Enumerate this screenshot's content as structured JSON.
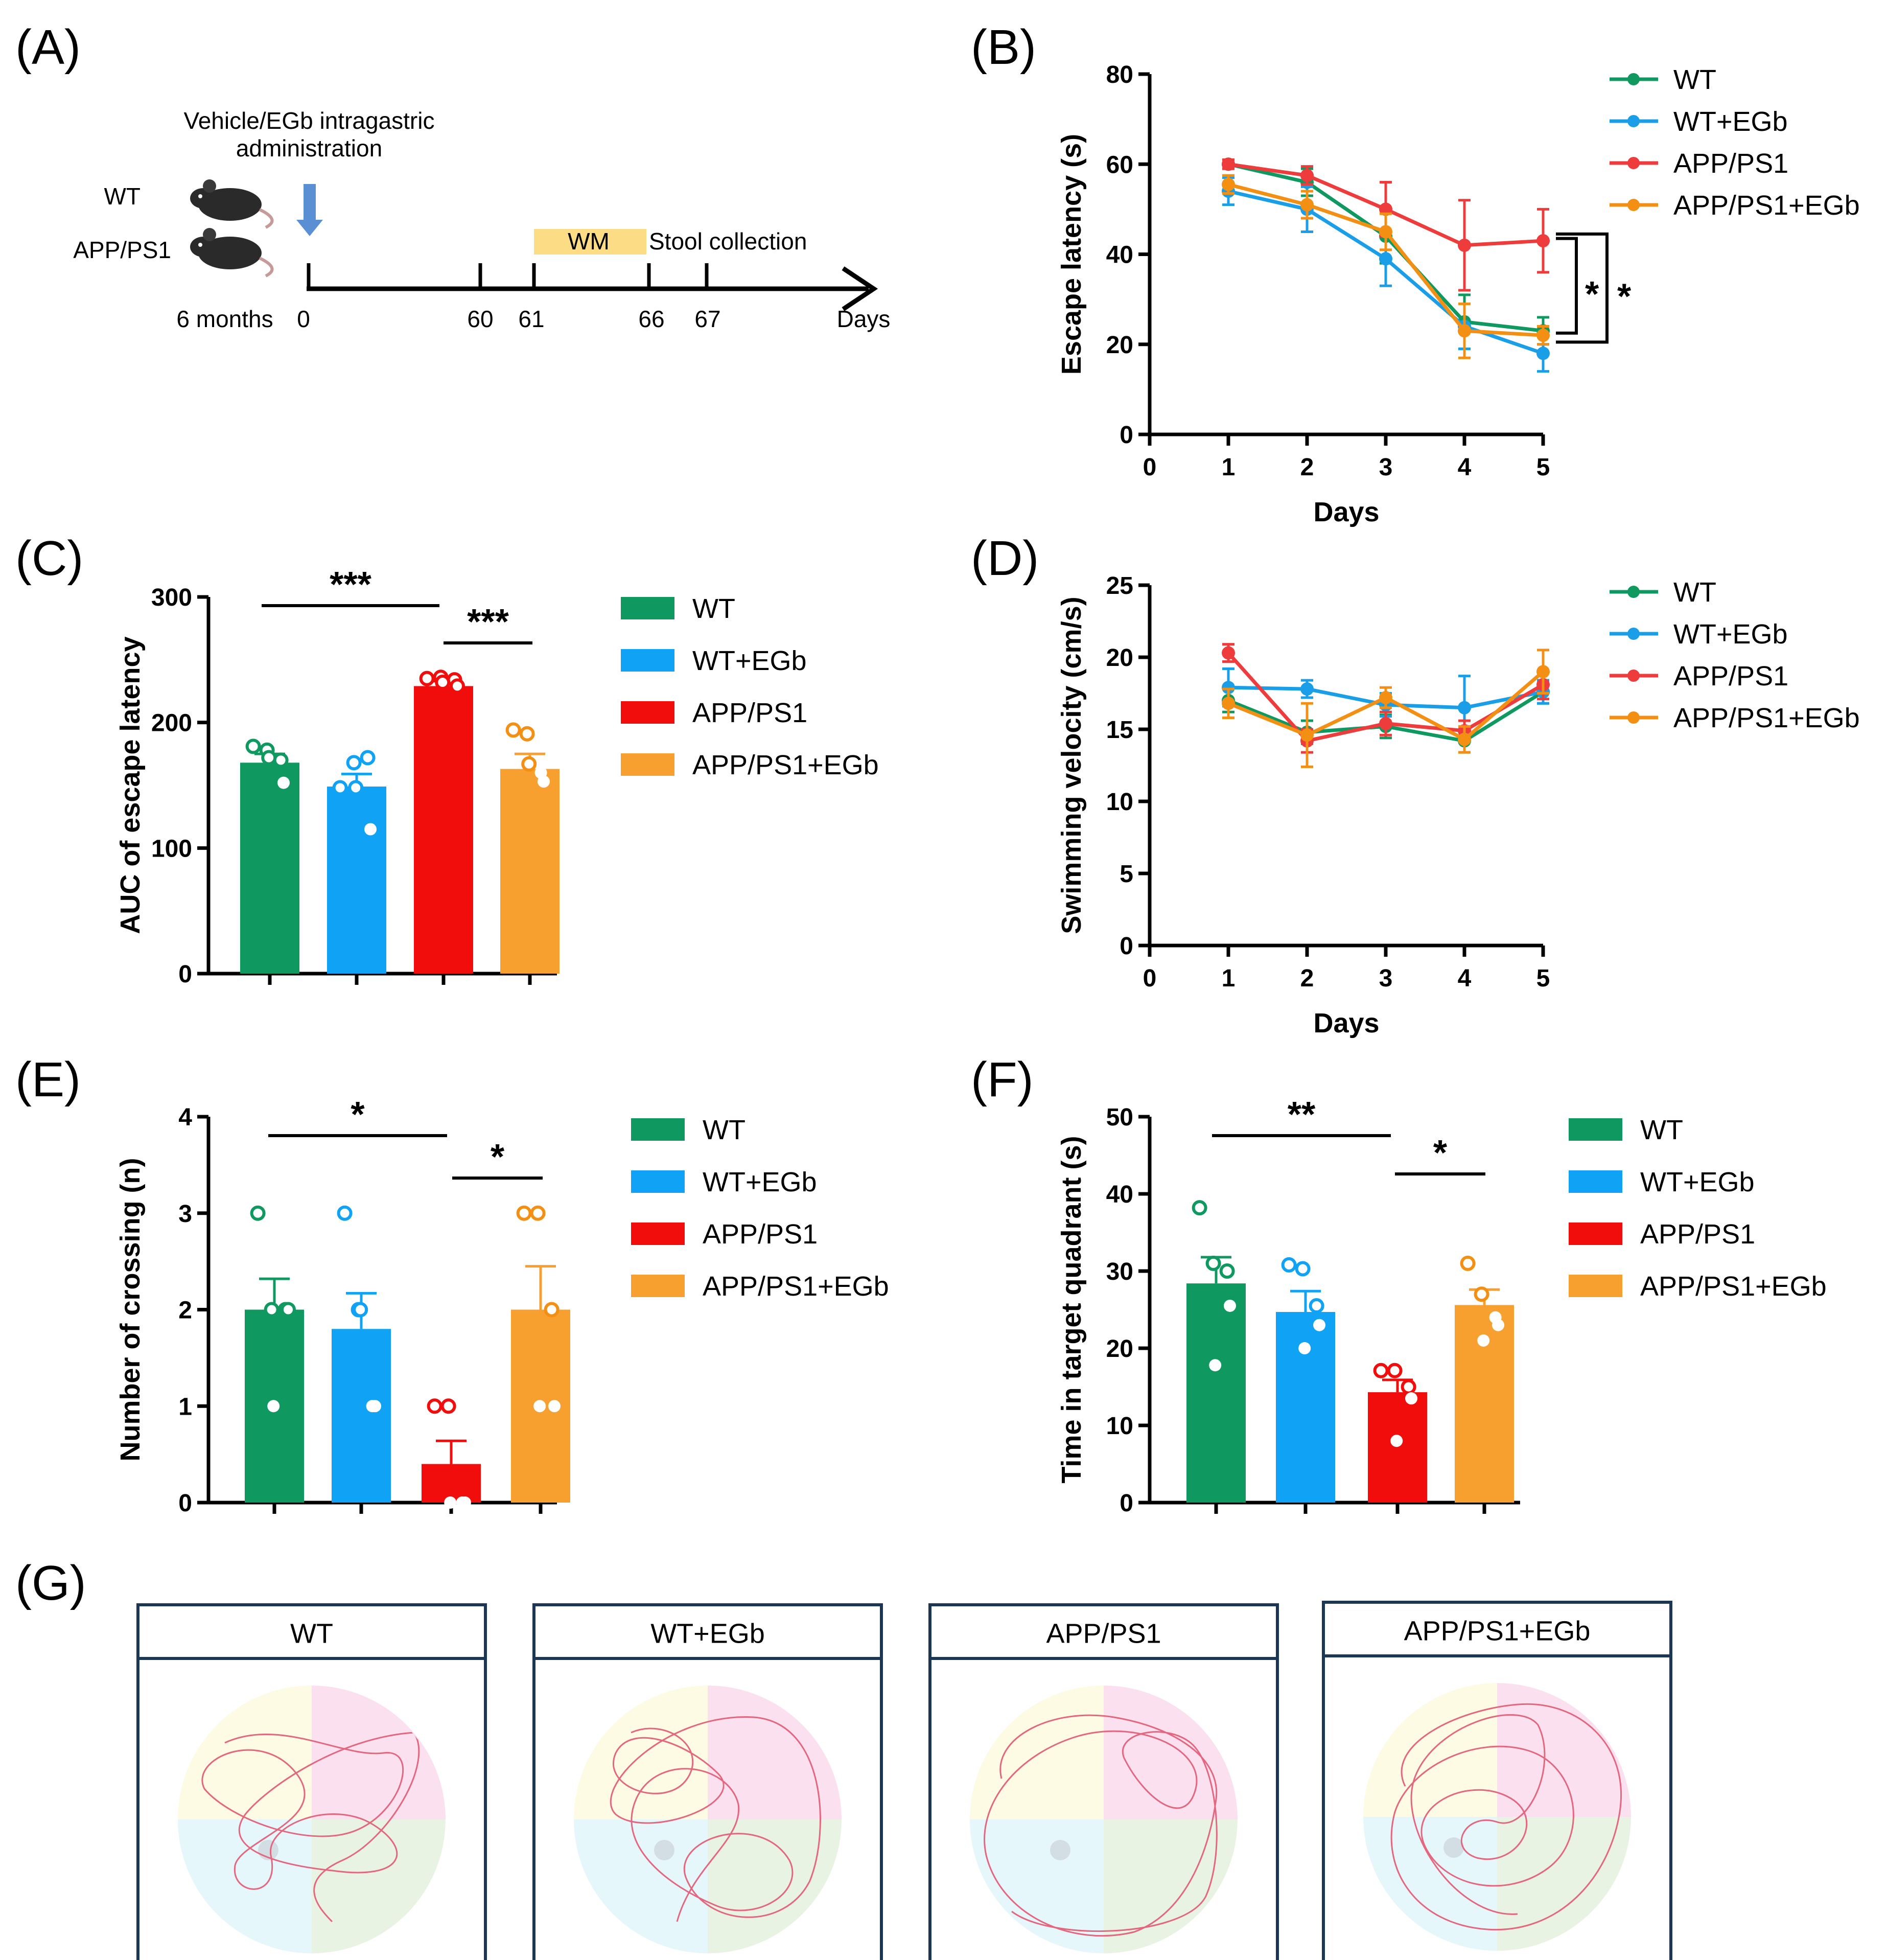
{
  "colors": {
    "WT": "#0f9960",
    "WT+EGb": "#1a9ee8",
    "APP/PS1": "#ee3b3b",
    "APP/PS1+EGb": "#f39014",
    "bar_APP": "#f20d0d",
    "bar_EGb": "#f7a030",
    "bar_WTEGb": "#10a3f5"
  },
  "panel_labels": {
    "a": "(A)",
    "b": "(B)",
    "c": "(C)",
    "d": "(D)",
    "e": "(E)",
    "f": "(F)",
    "g": "(G)"
  },
  "timeline": {
    "admin_line1": "Vehicle/EGb intragastric",
    "admin_line2": "administration",
    "group_wt": "WT",
    "group_app": "APP/PS1",
    "start_label": "6 months",
    "ticks": [
      "0",
      "60",
      "61",
      "66",
      "67"
    ],
    "wm_label": "WM",
    "stool_label": "Stool collection",
    "axis_end": "Days"
  },
  "legend_groups": [
    "WT",
    "WT+EGb",
    "APP/PS1",
    "APP/PS1+EGb"
  ],
  "chart_data": [
    {
      "id": "B",
      "type": "line",
      "title": "",
      "xlabel": "Days",
      "ylabel": "Escape latency (s)",
      "xlim": [
        0,
        5
      ],
      "ylim": [
        0,
        80
      ],
      "x_ticks": [
        "0",
        "1",
        "2",
        "3",
        "4",
        "5"
      ],
      "y_ticks": [
        "0",
        "20",
        "40",
        "60",
        "80"
      ],
      "x": [
        1,
        2,
        3,
        4,
        5
      ],
      "series": [
        {
          "name": "WT",
          "values": [
            60,
            56,
            44,
            25,
            23
          ],
          "errors": [
            1,
            3,
            6,
            6,
            3
          ]
        },
        {
          "name": "WT+EGb",
          "values": [
            54,
            50,
            39,
            24,
            18
          ],
          "errors": [
            3,
            5,
            6,
            5,
            4
          ]
        },
        {
          "name": "APP/PS1",
          "values": [
            60,
            57.5,
            50,
            42,
            43
          ],
          "errors": [
            1,
            2,
            6,
            10,
            7
          ]
        },
        {
          "name": "APP/PS1+EGb",
          "values": [
            55.5,
            51,
            45,
            23,
            22
          ],
          "errors": [
            2,
            3,
            4,
            6,
            2
          ]
        }
      ],
      "annotations": [
        "*",
        "*"
      ]
    },
    {
      "id": "C",
      "type": "bar",
      "ylabel": "AUC of escape latency",
      "ylim": [
        0,
        300
      ],
      "y_ticks": [
        "0",
        "100",
        "200",
        "300"
      ],
      "categories": [
        "WT",
        "WT+EGb",
        "APP/PS1",
        "APP/PS1+EGb"
      ],
      "values": [
        168,
        149,
        229,
        163
      ],
      "errors": [
        7,
        10,
        4,
        12
      ],
      "points": [
        [
          181,
          178,
          170,
          152,
          172
        ],
        [
          148,
          168,
          172,
          115,
          148
        ],
        [
          235,
          236,
          234,
          229,
          232
        ],
        [
          194,
          191,
          160,
          153,
          167
        ]
      ],
      "annotations": [
        "***",
        "***"
      ]
    },
    {
      "id": "D",
      "type": "line",
      "xlabel": "Days",
      "ylabel": "Swimming velocity (cm/s)",
      "xlim": [
        0,
        5
      ],
      "ylim": [
        0,
        25
      ],
      "x_ticks": [
        "0",
        "1",
        "2",
        "3",
        "4",
        "5"
      ],
      "y_ticks": [
        "0",
        "5",
        "10",
        "15",
        "20",
        "25"
      ],
      "x": [
        1,
        2,
        3,
        4,
        5
      ],
      "series": [
        {
          "name": "WT",
          "values": [
            17,
            14.8,
            15.2,
            14.2,
            17.6
          ],
          "errors": [
            0.8,
            0.8,
            0.8,
            0.8,
            0.8
          ]
        },
        {
          "name": "WT+EGb",
          "values": [
            17.9,
            17.8,
            16.7,
            16.5,
            17.6
          ],
          "errors": [
            1.3,
            0.6,
            0.8,
            2.2,
            0.8
          ]
        },
        {
          "name": "APP/PS1",
          "values": [
            20.3,
            14.2,
            15.4,
            14.9,
            18.1
          ],
          "errors": [
            0.6,
            0.8,
            0.8,
            0.7,
            1
          ]
        },
        {
          "name": "APP/PS1+EGb",
          "values": [
            16.8,
            14.6,
            17.2,
            14.3,
            19
          ],
          "errors": [
            1,
            2.2,
            0.7,
            0.9,
            1.5
          ]
        }
      ]
    },
    {
      "id": "E",
      "type": "bar",
      "ylabel": "Number of crossing (n)",
      "ylim": [
        0,
        4
      ],
      "y_ticks": [
        "0",
        "1",
        "2",
        "3",
        "4"
      ],
      "categories": [
        "WT",
        "WT+EGb",
        "APP/PS1",
        "APP/PS1+EGb"
      ],
      "values": [
        2.0,
        1.8,
        0.4,
        2.0
      ],
      "errors": [
        0.32,
        0.37,
        0.24,
        0.45
      ],
      "points": [
        [
          3,
          2,
          2,
          2,
          1
        ],
        [
          3,
          2,
          1,
          1,
          2
        ],
        [
          1,
          1,
          0,
          0,
          0
        ],
        [
          3,
          3,
          2,
          1,
          1
        ]
      ],
      "annotations": [
        "*",
        "*"
      ]
    },
    {
      "id": "F",
      "type": "bar",
      "ylabel": "Time in target quadrant (s)",
      "ylim": [
        0,
        50
      ],
      "y_ticks": [
        "0",
        "10",
        "20",
        "30",
        "40",
        "50"
      ],
      "categories": [
        "WT",
        "WT+EGb",
        "APP/PS1",
        "APP/PS1+EGb"
      ],
      "values": [
        28.4,
        24.7,
        14.3,
        25.6
      ],
      "errors": [
        3.4,
        2.7,
        1.6,
        2.0
      ],
      "points": [
        [
          38.2,
          31,
          30,
          25.5,
          17.8
        ],
        [
          30.8,
          30.3,
          25.5,
          23,
          20
        ],
        [
          17.1,
          17.1,
          15,
          13.5,
          8
        ],
        [
          31,
          27,
          24,
          23,
          21
        ]
      ],
      "annotations": [
        "**",
        "*"
      ]
    }
  ],
  "tracks": {
    "titles": [
      "WT",
      "WT+EGb",
      "APP/PS1",
      "APP/PS1+EGb"
    ]
  }
}
